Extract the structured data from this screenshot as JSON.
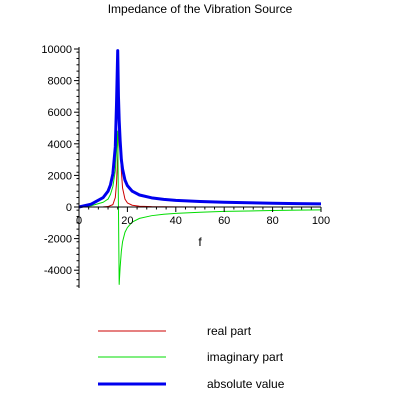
{
  "chart_data": {
    "type": "line",
    "title": "Impedance of the Vibration Source",
    "xlabel": "f",
    "ylabel": "",
    "xlim": [
      0,
      100
    ],
    "ylim": [
      -5000,
      10000
    ],
    "xticks": [
      0,
      20,
      40,
      60,
      80,
      100
    ],
    "xtick_labels": [
      "0",
      "20",
      "40",
      "60",
      "80",
      "100"
    ],
    "yticks": [
      -4000,
      -2000,
      0,
      2000,
      4000,
      6000,
      8000,
      10000
    ],
    "ytick_labels": [
      "-4000",
      "-2000",
      "0",
      "2000",
      "4000",
      "6000",
      "8000",
      "10000"
    ],
    "grid": false,
    "legend_position": "bottom",
    "series": [
      {
        "name": "real part",
        "color": "#cc0000",
        "width": 1,
        "x": [
          0,
          5,
          10,
          12,
          14,
          15,
          15.5,
          16,
          16.5,
          17,
          17.5,
          18,
          19,
          20,
          22,
          25,
          30,
          40,
          50,
          60,
          80,
          100
        ],
        "y": [
          0,
          2,
          10,
          30,
          150,
          600,
          1500,
          3200,
          5300,
          4200,
          2300,
          1200,
          500,
          260,
          110,
          50,
          20,
          8,
          4,
          2,
          1,
          0
        ]
      },
      {
        "name": "imaginary part",
        "color": "#00dd00",
        "width": 1,
        "x": [
          0,
          5,
          10,
          12,
          13,
          14,
          15,
          16,
          16.3,
          16.6,
          17,
          17.5,
          18,
          19,
          20,
          22,
          25,
          30,
          35,
          40,
          50,
          60,
          70,
          80,
          90,
          100
        ],
        "y": [
          0,
          80,
          300,
          500,
          800,
          1300,
          2300,
          4800,
          0,
          -4900,
          -3800,
          -2800,
          -2200,
          -1600,
          -1300,
          -950,
          -720,
          -550,
          -460,
          -400,
          -330,
          -280,
          -250,
          -220,
          -200,
          -180
        ]
      },
      {
        "name": "absolute value",
        "color": "#0000ee",
        "width": 3,
        "x": [
          0,
          5,
          10,
          12,
          13,
          14,
          15,
          15.5,
          16,
          16.3,
          16.6,
          17,
          17.5,
          18,
          19,
          20,
          22,
          25,
          30,
          35,
          40,
          50,
          60,
          70,
          80,
          90,
          100
        ],
        "y": [
          0,
          180,
          600,
          1000,
          1400,
          2100,
          3800,
          6500,
          9900,
          7000,
          5500,
          4200,
          3000,
          2400,
          1700,
          1350,
          1000,
          760,
          580,
          480,
          420,
          350,
          300,
          270,
          240,
          215,
          200
        ]
      }
    ]
  }
}
